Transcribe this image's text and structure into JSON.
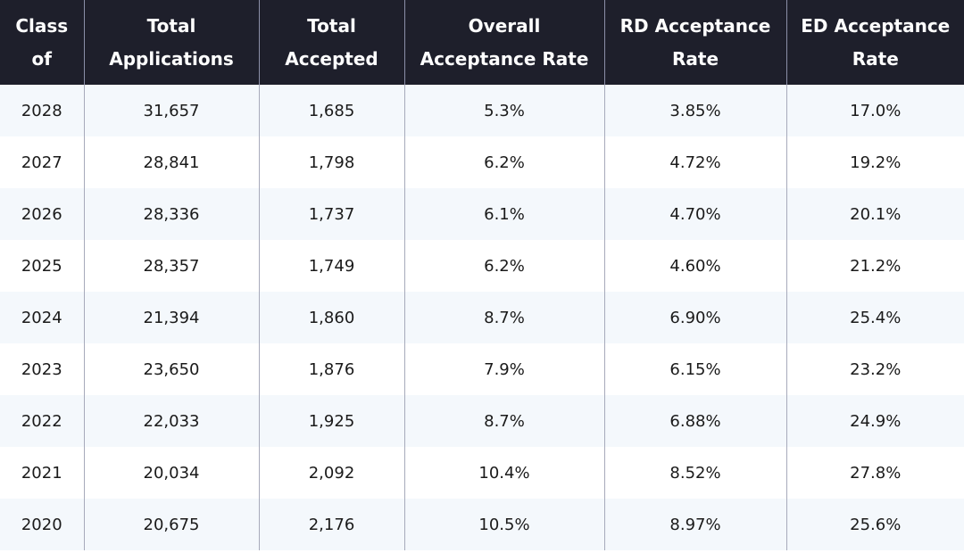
{
  "chart_data": {
    "type": "table",
    "columns": [
      "Class of",
      "Total Applications",
      "Total Accepted",
      "Overall Acceptance Rate",
      "RD Acceptance Rate",
      "ED Acceptance Rate"
    ],
    "rows": [
      [
        "2028",
        "31,657",
        "1,685",
        "5.3%",
        "3.85%",
        "17.0%"
      ],
      [
        "2027",
        "28,841",
        "1,798",
        "6.2%",
        "4.72%",
        "19.2%"
      ],
      [
        "2026",
        "28,336",
        "1,737",
        "6.1%",
        "4.70%",
        "20.1%"
      ],
      [
        "2025",
        "28,357",
        "1,749",
        "6.2%",
        "4.60%",
        "21.2%"
      ],
      [
        "2024",
        "21,394",
        "1,860",
        "8.7%",
        "6.90%",
        "25.4%"
      ],
      [
        "2023",
        "23,650",
        "1,876",
        "7.9%",
        "6.15%",
        "23.2%"
      ],
      [
        "2022",
        "22,033",
        "1,925",
        "8.7%",
        "6.88%",
        "24.9%"
      ],
      [
        "2021",
        "20,034",
        "2,092",
        "10.4%",
        "8.52%",
        "27.8%"
      ],
      [
        "2020",
        "20,675",
        "2,176",
        "10.5%",
        "8.97%",
        "25.6%"
      ]
    ]
  },
  "colors": {
    "header_bg": "#1e1f2b",
    "header_text": "#ffffff",
    "row_alt_bg": "#f4f8fc"
  }
}
